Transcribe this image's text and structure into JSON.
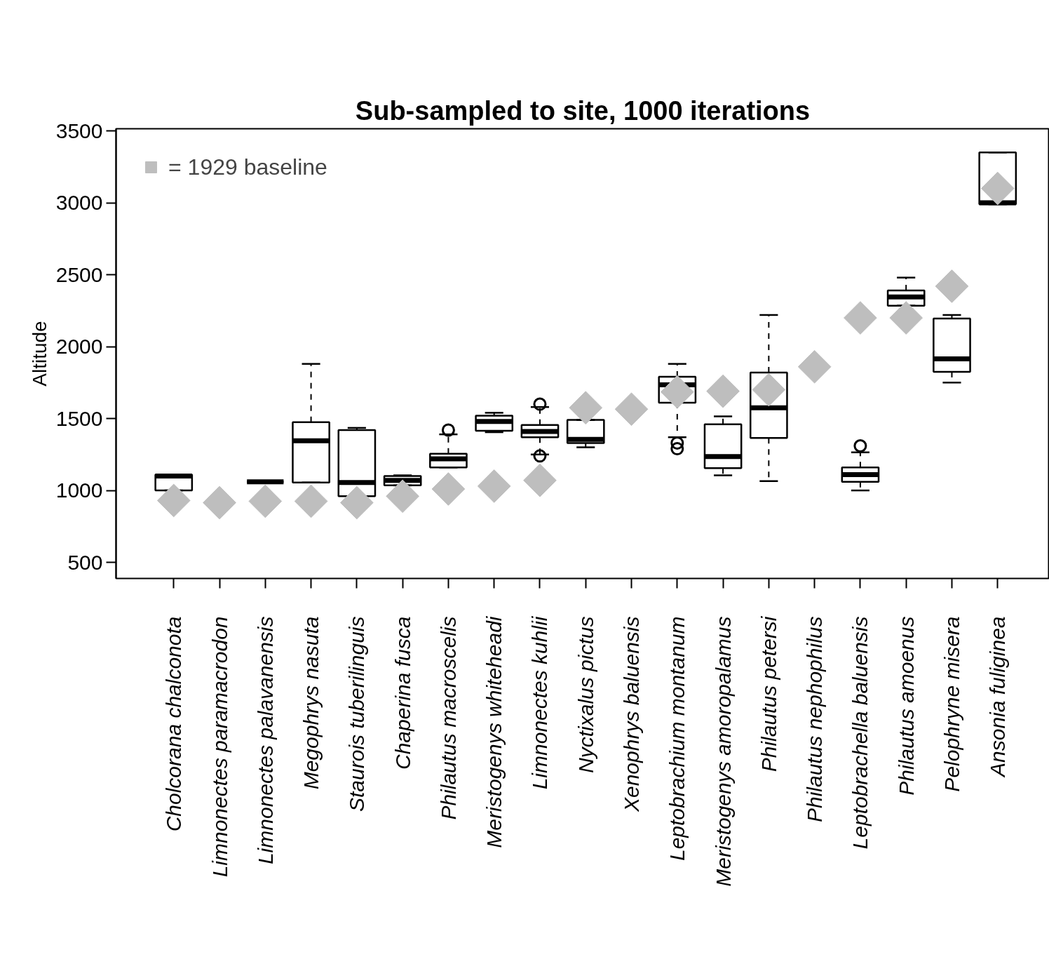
{
  "chart_data": {
    "type": "box",
    "title": "Sub-sampled to site, 1000 iterations",
    "ylabel": "Altitude",
    "categories": [
      "Cholcorana chalconota",
      "Limnonectes paramacrodon",
      "Limnonectes palavanensis",
      "Megophrys nasuta",
      "Staurois tuberilinguis",
      "Chaperina fusca",
      "Philautus macroscelis",
      "Meristogenys whiteheadi",
      "Limnonectes kuhlii",
      "Nyctixalus pictus",
      "Xenophrys baluensis",
      "Leptobrachium montanum",
      "Meristogenys amoropalamus",
      "Philautus petersi",
      "Philautus nephophilus",
      "Leptobrachella baluensis",
      "Philautus amoenus",
      "Pelophryne misera",
      "Ansonia fuliginea"
    ],
    "boxes": [
      {
        "low": 1000,
        "q1": 1000,
        "median": 1100,
        "q3": 1110,
        "high": 1110
      },
      null,
      {
        "low": 1060,
        "q1": 1060,
        "median": 1060,
        "q3": 1060,
        "high": 1060
      },
      {
        "low": 1055,
        "q1": 1055,
        "median": 1345,
        "q3": 1475,
        "high": 1880
      },
      {
        "low": 960,
        "q1": 960,
        "median": 1055,
        "q3": 1420,
        "high": 1435
      },
      {
        "low": 1035,
        "q1": 1035,
        "median": 1070,
        "q3": 1100,
        "high": 1105
      },
      {
        "low": 1160,
        "q1": 1160,
        "median": 1220,
        "q3": 1255,
        "high": 1390,
        "outliers": [
          1420
        ]
      },
      {
        "low": 1405,
        "q1": 1415,
        "median": 1480,
        "q3": 1520,
        "high": 1540
      },
      {
        "low": 1250,
        "q1": 1370,
        "median": 1410,
        "q3": 1455,
        "high": 1580,
        "outliers": [
          1600,
          1240
        ]
      },
      {
        "low": 1300,
        "q1": 1330,
        "median": 1355,
        "q3": 1490,
        "high": 1490
      },
      null,
      {
        "low": 1370,
        "q1": 1610,
        "median": 1735,
        "q3": 1790,
        "high": 1880,
        "outliers": [
          1330,
          1290
        ]
      },
      {
        "low": 1105,
        "q1": 1155,
        "median": 1235,
        "q3": 1460,
        "high": 1515
      },
      {
        "low": 1065,
        "q1": 1365,
        "median": 1575,
        "q3": 1820,
        "high": 2220
      },
      null,
      {
        "low": 1000,
        "q1": 1060,
        "median": 1110,
        "q3": 1160,
        "high": 1265,
        "outliers": [
          1310
        ]
      },
      {
        "low": 2285,
        "q1": 2285,
        "median": 2345,
        "q3": 2390,
        "high": 2480
      },
      {
        "low": 1750,
        "q1": 1825,
        "median": 1915,
        "q3": 2195,
        "high": 2220
      },
      {
        "low": 2990,
        "q1": 2990,
        "median": 3000,
        "q3": 3350,
        "high": 3350
      }
    ],
    "series": [
      {
        "type": "scatter",
        "name": "= 1929 baseline",
        "color": "#bebebe",
        "x": [
          "Cholcorana chalconota",
          "Limnonectes paramacrodon",
          "Limnonectes palavanensis",
          "Megophrys nasuta",
          "Staurois tuberilinguis",
          "Chaperina fusca",
          "Philautus macroscelis",
          "Meristogenys whiteheadi",
          "Limnonectes kuhlii",
          "Nyctixalus pictus",
          "Xenophrys baluensis",
          "Leptobrachium montanum",
          "Meristogenys amoropalamus",
          "Philautus petersi",
          "Philautus nephophilus",
          "Leptobrachella baluensis",
          "Philautus amoenus",
          "Pelophryne misera",
          "Ansonia fuliginea"
        ],
        "values": [
          930,
          915,
          925,
          925,
          915,
          960,
          1010,
          1030,
          1070,
          1575,
          1565,
          1685,
          1690,
          1700,
          1860,
          2200,
          2200,
          2420,
          3100
        ]
      }
    ],
    "marker": "diamond",
    "color": "#000000",
    "ylim": [
      388,
      3515
    ],
    "yticks": [
      500,
      1000,
      1500,
      2000,
      2500,
      3000,
      3500
    ],
    "legend": "top left"
  }
}
